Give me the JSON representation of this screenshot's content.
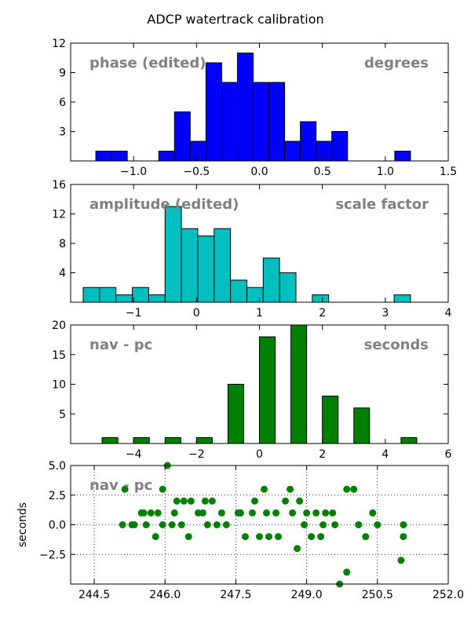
{
  "figure": {
    "title": "ADCP watertrack calibration"
  },
  "chart_data": [
    {
      "type": "bar",
      "annotations": [
        "phase (edited)",
        "degrees"
      ],
      "xlim": [
        -1.5,
        1.5
      ],
      "ylim": [
        0,
        12
      ],
      "xticks": [
        -1.0,
        -0.5,
        0.0,
        0.5,
        1.0,
        1.5
      ],
      "xtick_labels": [
        "−1.0",
        "−0.5",
        "0.0",
        "0.5",
        "1.0",
        "1.5"
      ],
      "yticks": [
        3,
        6,
        9,
        12
      ],
      "ytick_labels": [
        "3",
        "6",
        "9",
        "12"
      ],
      "color": "#0000ff",
      "bins": [
        {
          "x0": -1.3,
          "x1": -1.175,
          "count": 1
        },
        {
          "x0": -1.175,
          "x1": -1.05,
          "count": 1
        },
        {
          "x0": -0.8,
          "x1": -0.675,
          "count": 1
        },
        {
          "x0": -0.675,
          "x1": -0.55,
          "count": 5
        },
        {
          "x0": -0.55,
          "x1": -0.425,
          "count": 2
        },
        {
          "x0": -0.425,
          "x1": -0.3,
          "count": 10
        },
        {
          "x0": -0.3,
          "x1": -0.175,
          "count": 8
        },
        {
          "x0": -0.175,
          "x1": -0.05,
          "count": 11
        },
        {
          "x0": -0.05,
          "x1": 0.075,
          "count": 8
        },
        {
          "x0": 0.075,
          "x1": 0.2,
          "count": 8
        },
        {
          "x0": 0.2,
          "x1": 0.325,
          "count": 2
        },
        {
          "x0": 0.325,
          "x1": 0.45,
          "count": 4
        },
        {
          "x0": 0.45,
          "x1": 0.575,
          "count": 2
        },
        {
          "x0": 0.575,
          "x1": 0.7,
          "count": 3
        },
        {
          "x0": 1.075,
          "x1": 1.2,
          "count": 1
        }
      ]
    },
    {
      "type": "bar",
      "annotations": [
        "amplitude (edited)",
        "scale factor"
      ],
      "xlim": [
        -2.0,
        4.0
      ],
      "ylim": [
        0,
        16
      ],
      "xticks": [
        -1,
        0,
        1,
        2,
        3,
        4
      ],
      "xtick_labels": [
        "−1",
        "0",
        "1",
        "2",
        "3",
        "4"
      ],
      "yticks": [
        4,
        8,
        12,
        16
      ],
      "ytick_labels": [
        "4",
        "8",
        "12",
        "16"
      ],
      "color": "#00bfbf",
      "bins": [
        {
          "x0": -1.8,
          "x1": -1.54,
          "count": 2
        },
        {
          "x0": -1.54,
          "x1": -1.28,
          "count": 2
        },
        {
          "x0": -1.28,
          "x1": -1.02,
          "count": 1
        },
        {
          "x0": -1.02,
          "x1": -0.76,
          "count": 2
        },
        {
          "x0": -0.76,
          "x1": -0.5,
          "count": 1
        },
        {
          "x0": -0.5,
          "x1": -0.24,
          "count": 13
        },
        {
          "x0": -0.24,
          "x1": 0.02,
          "count": 10
        },
        {
          "x0": 0.02,
          "x1": 0.28,
          "count": 9
        },
        {
          "x0": 0.28,
          "x1": 0.54,
          "count": 10
        },
        {
          "x0": 0.54,
          "x1": 0.8,
          "count": 3
        },
        {
          "x0": 0.8,
          "x1": 1.06,
          "count": 2
        },
        {
          "x0": 1.06,
          "x1": 1.32,
          "count": 6
        },
        {
          "x0": 1.32,
          "x1": 1.58,
          "count": 4
        },
        {
          "x0": 1.84,
          "x1": 2.1,
          "count": 1
        },
        {
          "x0": 3.14,
          "x1": 3.4,
          "count": 1
        }
      ]
    },
    {
      "type": "bar",
      "annotations": [
        "nav - pc",
        "seconds"
      ],
      "xlim": [
        -6,
        6
      ],
      "ylim": [
        0,
        20
      ],
      "xticks": [
        -4,
        -2,
        0,
        2,
        4,
        6
      ],
      "xtick_labels": [
        "−4",
        "−2",
        "0",
        "2",
        "4",
        "6"
      ],
      "yticks": [
        5,
        10,
        15,
        20
      ],
      "ytick_labels": [
        "5",
        "10",
        "15",
        "20"
      ],
      "color": "#008000",
      "bins": [
        {
          "x0": -5.0,
          "x1": -4.5,
          "count": 1
        },
        {
          "x0": -4.0,
          "x1": -3.5,
          "count": 1
        },
        {
          "x0": -3.0,
          "x1": -2.5,
          "count": 1
        },
        {
          "x0": -2.0,
          "x1": -1.5,
          "count": 1
        },
        {
          "x0": -1.0,
          "x1": -0.5,
          "count": 10
        },
        {
          "x0": 0.0,
          "x1": 0.5,
          "count": 18
        },
        {
          "x0": 1.0,
          "x1": 1.5,
          "count": 20
        },
        {
          "x0": 2.0,
          "x1": 2.5,
          "count": 8
        },
        {
          "x0": 3.0,
          "x1": 3.5,
          "count": 6
        },
        {
          "x0": 4.5,
          "x1": 5.0,
          "count": 1
        }
      ]
    },
    {
      "type": "scatter",
      "annotations": [
        "nav - pc"
      ],
      "ylabel": "seconds",
      "xlim": [
        244.0,
        252.0
      ],
      "ylim": [
        -5.0,
        5.0
      ],
      "grid": true,
      "xticks": [
        244.5,
        246.0,
        247.5,
        249.0,
        250.5,
        252.0
      ],
      "xtick_labels": [
        "244.5",
        "246.0",
        "247.5",
        "249.0",
        "250.5",
        "252.0"
      ],
      "yticks": [
        -2.5,
        0.0,
        2.5,
        5.0
      ],
      "ytick_labels": [
        "−2.5",
        "0.0",
        "2.5",
        "5.0"
      ],
      "color": "#008000",
      "points": [
        [
          245.1,
          0.0
        ],
        [
          245.15,
          3.0
        ],
        [
          245.3,
          0.0
        ],
        [
          245.35,
          0.0
        ],
        [
          245.5,
          1.0
        ],
        [
          245.55,
          1.0
        ],
        [
          245.6,
          0.0
        ],
        [
          245.7,
          1.0
        ],
        [
          245.8,
          -1.0
        ],
        [
          245.85,
          1.0
        ],
        [
          245.95,
          3.0
        ],
        [
          245.95,
          0.0
        ],
        [
          246.05,
          5.0
        ],
        [
          246.15,
          0.0
        ],
        [
          246.2,
          1.0
        ],
        [
          246.25,
          2.0
        ],
        [
          246.35,
          0.0
        ],
        [
          246.4,
          2.0
        ],
        [
          246.5,
          -1.0
        ],
        [
          246.55,
          2.0
        ],
        [
          246.7,
          1.0
        ],
        [
          246.8,
          1.0
        ],
        [
          246.85,
          2.0
        ],
        [
          246.9,
          0.0
        ],
        [
          247.0,
          2.0
        ],
        [
          247.1,
          0.0
        ],
        [
          247.2,
          1.0
        ],
        [
          247.3,
          0.0
        ],
        [
          247.55,
          1.0
        ],
        [
          247.6,
          1.0
        ],
        [
          247.7,
          -1.0
        ],
        [
          247.85,
          1.0
        ],
        [
          247.9,
          2.0
        ],
        [
          248.0,
          -1.0
        ],
        [
          248.1,
          3.0
        ],
        [
          248.15,
          1.0
        ],
        [
          248.2,
          -1.0
        ],
        [
          248.35,
          1.0
        ],
        [
          248.4,
          -1.0
        ],
        [
          248.55,
          2.0
        ],
        [
          248.65,
          3.0
        ],
        [
          248.7,
          1.0
        ],
        [
          248.8,
          -2.0
        ],
        [
          248.85,
          2.0
        ],
        [
          248.95,
          0.0
        ],
        [
          249.0,
          1.0
        ],
        [
          249.1,
          -1.0
        ],
        [
          249.2,
          1.0
        ],
        [
          249.3,
          -1.0
        ],
        [
          249.35,
          0.0
        ],
        [
          249.4,
          1.0
        ],
        [
          249.55,
          1.0
        ],
        [
          249.6,
          0.0
        ],
        [
          249.7,
          -5.0
        ],
        [
          249.85,
          3.0
        ],
        [
          249.85,
          -4.0
        ],
        [
          250.0,
          3.0
        ],
        [
          250.1,
          0.0
        ],
        [
          250.25,
          -1.0
        ],
        [
          250.4,
          1.0
        ],
        [
          250.5,
          0.0
        ],
        [
          251.0,
          -3.0
        ],
        [
          251.05,
          0.0
        ],
        [
          251.05,
          -1.0
        ]
      ]
    }
  ]
}
